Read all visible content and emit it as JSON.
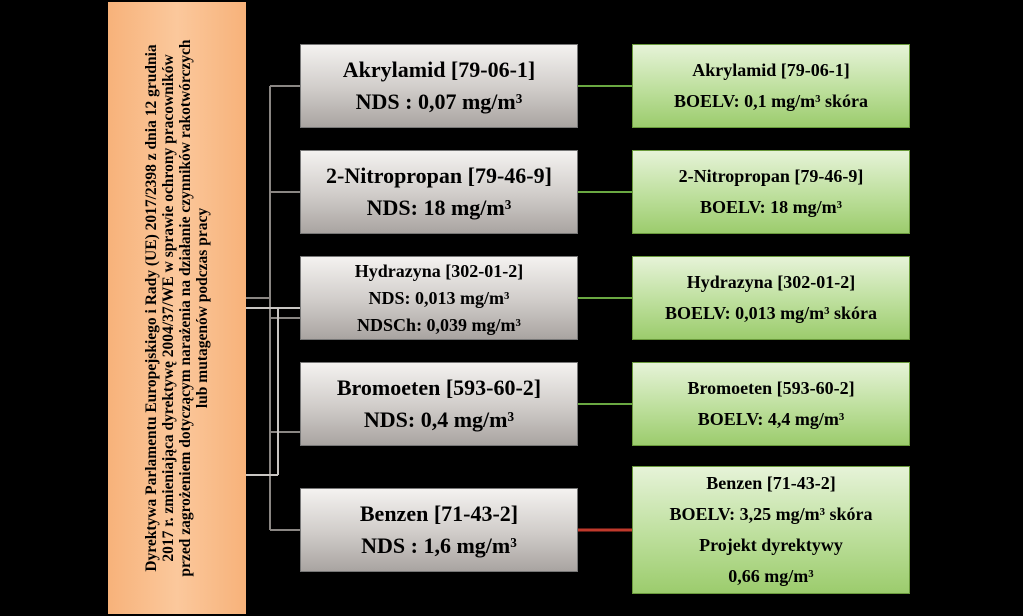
{
  "directive": {
    "lines": [
      "Dyrektywa Parlamentu Europejskiego i Rady (UE) 2017/2398 z dnia 12 grudnia",
      "2017 r. zmieniająca dyrektywę 2004/37/WE w sprawie ochrony pracowników",
      "przed zagrożeniem dotyczącym narażenia na działanie czynników rakotwórczych",
      "lub mutagenów podczas pracy"
    ]
  },
  "rows": [
    {
      "left": {
        "lines": [
          "Akrylamid  [79-06-1]",
          "NDS : 0,07 mg/m³"
        ]
      },
      "right": {
        "lines": [
          "Akrylamid [79-06-1]",
          "BOELV: 0,1 mg/m³ skóra"
        ]
      }
    },
    {
      "left": {
        "lines": [
          "2-Nitropropan [79-46-9]",
          "NDS: 18 mg/m³"
        ]
      },
      "right": {
        "lines": [
          "2-Nitropropan [79-46-9]",
          "BOELV: 18 mg/m³"
        ]
      }
    },
    {
      "left": {
        "lines": [
          "Hydrazyna [302-01-2]",
          "NDS: 0,013 mg/m³",
          "NDSCh: 0,039 mg/m³"
        ]
      },
      "right": {
        "lines": [
          "Hydrazyna [302-01-2]",
          "BOELV: 0,013 mg/m³ skóra"
        ]
      }
    },
    {
      "left": {
        "lines": [
          "Bromoeten [593-60-2]",
          "NDS: 0,4 mg/m³"
        ]
      },
      "right": {
        "lines": [
          "Bromoeten [593-60-2]",
          "BOELV: 4,4 mg/m³"
        ]
      }
    },
    {
      "left": {
        "lines": [
          "Benzen [71-43-2]",
          "NDS : 1,6 mg/m³"
        ]
      },
      "right": {
        "lines": [
          "Benzen [71-43-2]",
          "BOELV: 3,25 mg/m³ skóra",
          "Projekt dyrektywy",
          "0,66 mg/m³"
        ]
      }
    }
  ]
}
